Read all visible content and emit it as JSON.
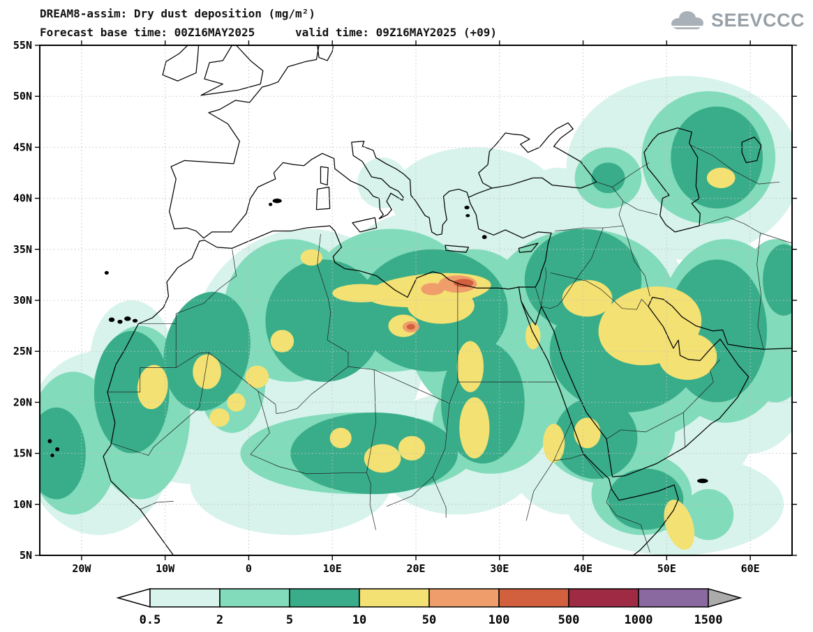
{
  "header": {
    "title_line1": "DREAM8-assim: Dry dust deposition (mg/m²)",
    "title_line2": "Forecast base time: 00Z16MAY2025      valid time: 09Z16MAY2025 (+09)",
    "logo_text": "SEEVCCC"
  },
  "chart_data": {
    "type": "filled-contour-map",
    "title": "DREAM8-assim: Dry dust deposition (mg/m²)",
    "model": "DREAM8-assim",
    "variable": "Dry dust deposition",
    "units": "mg/m²",
    "forecast_base_time": "00Z16MAY2025",
    "valid_time": "09Z16MAY2025",
    "forecast_offset": "+09",
    "map_extent": {
      "lon_min": -25,
      "lon_max": 65,
      "lat_min": 5,
      "lat_max": 55
    },
    "lon_ticks": [
      {
        "value": -20,
        "label": "20W"
      },
      {
        "value": -10,
        "label": "10W"
      },
      {
        "value": 0,
        "label": "0"
      },
      {
        "value": 10,
        "label": "10E"
      },
      {
        "value": 20,
        "label": "20E"
      },
      {
        "value": 30,
        "label": "30E"
      },
      {
        "value": 40,
        "label": "40E"
      },
      {
        "value": 50,
        "label": "50E"
      },
      {
        "value": 60,
        "label": "60E"
      }
    ],
    "lat_ticks": [
      {
        "value": 55,
        "label": "55N"
      },
      {
        "value": 50,
        "label": "50N"
      },
      {
        "value": 45,
        "label": "45N"
      },
      {
        "value": 40,
        "label": "40N"
      },
      {
        "value": 35,
        "label": "35N"
      },
      {
        "value": 30,
        "label": "30N"
      },
      {
        "value": 25,
        "label": "25N"
      },
      {
        "value": 20,
        "label": "20N"
      },
      {
        "value": 15,
        "label": "15N"
      },
      {
        "value": 10,
        "label": "10N"
      },
      {
        "value": 5,
        "label": "5N"
      }
    ],
    "contour_levels": [
      0.5,
      2,
      5,
      10,
      50,
      100,
      500,
      1000,
      1500
    ],
    "palette": {
      "below": "#ffffff",
      "bins": [
        "#d7f3ec",
        "#82dbba",
        "#39ad89",
        "#f4e173",
        "#ef9e6b",
        "#d2603f",
        "#9e2b43",
        "#8a68a0"
      ],
      "above": "#ababab"
    },
    "grid": {
      "shown": true,
      "style": "dotted",
      "lon_step_deg": 10,
      "lat_step_deg": 5
    },
    "notable_features": [
      "Deposition 0.5-50 mg/m² over most of the Sahara, Sahel and Middle East",
      "Peak spots 100-500 mg/m² on the NE Libya / NW Egypt coast near 31N 21-27E and in central Libya near 27.5N 19E",
      "Band 10-50 mg/m² along the Libya-Egypt Mediterranean coast (28-33N, 10-29E)",
      "10-50 mg/m² over northern Saudi Arabia, Iraq, Kuwait and the Persian Gulf",
      "Atlantic dust plume 2-10 mg/m² off West Africa between 8N and 23N",
      "2-10 mg/m² around the Caspian Sea and Karakum region (38-50N, 47-62E)",
      "10-50 mg/m² sliver over NE Somalia (5-10N) and along the SW Saudi / Yemen Red Sea coast"
    ]
  },
  "colorbar": {
    "labels": [
      "0.5",
      "2",
      "5",
      "10",
      "50",
      "100",
      "500",
      "1000",
      "1500"
    ]
  }
}
